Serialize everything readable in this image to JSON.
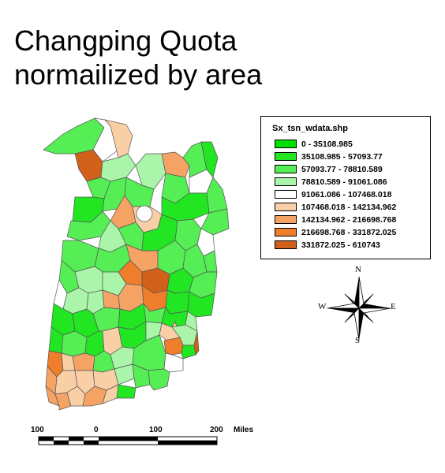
{
  "title_line1": "Changping Quota",
  "title_line2": "normailized by area",
  "legend": {
    "title": "Sx_tsn_wdata.shp",
    "classes": [
      {
        "label": "0 - 35108.985",
        "color": "#00e000"
      },
      {
        "label": "35108.985 - 57093.77",
        "color": "#22e622"
      },
      {
        "label": "57093.77 - 78810.589",
        "color": "#55ee55"
      },
      {
        "label": "78810.589 - 91061.086",
        "color": "#aaf5aa"
      },
      {
        "label": "91061.086 - 107468.018",
        "color": "#ffffff"
      },
      {
        "label": "107468.018 - 142134.962",
        "color": "#f9cfa6"
      },
      {
        "label": "142134.962 - 216698.768",
        "color": "#f5a364"
      },
      {
        "label": "216698.768 - 331872.025",
        "color": "#ee7e2c"
      },
      {
        "label": "331872.025 - 610743",
        "color": "#d0601a"
      }
    ]
  },
  "compass": {
    "n": "N",
    "s": "S",
    "e": "E",
    "w": "W"
  },
  "scale": {
    "labels": [
      "100",
      "0",
      "100",
      "200"
    ],
    "unit": "Miles"
  }
}
